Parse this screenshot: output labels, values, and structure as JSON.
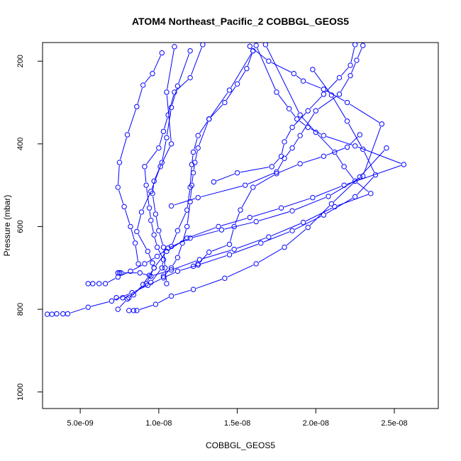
{
  "chart_data": {
    "type": "line",
    "title": "ATOM4 Northeast_Pacific_2 COBBGL_GEOS5",
    "xlabel": "COBBGL_GEOS5",
    "ylabel": "Pressure (mbar)",
    "xlim": [
      2.6e-09,
      2.78e-08
    ],
    "ylim": [
      1040,
      155
    ],
    "y_reversed": true,
    "x_ticks": [
      5e-09,
      1e-08,
      1.5e-08,
      2e-08,
      2.5e-08
    ],
    "x_tick_labels": [
      "5.0e-09",
      "1.0e-08",
      "1.5e-08",
      "2.0e-08",
      "2.5e-08"
    ],
    "y_ticks": [
      200,
      400,
      600,
      800,
      1000
    ],
    "y_tick_labels": [
      "200",
      "400",
      "600",
      "800",
      "1000"
    ],
    "grid": false,
    "color": "#0000ff",
    "marker": "open-circle",
    "series": [
      {
        "x": [
          2.9e-09,
          3.2e-09,
          3.5e-09,
          3.9e-09,
          4.2e-09,
          5.5e-09,
          7e-09,
          8.3e-09,
          9.3e-09,
          1.03e-08,
          1.12e-08,
          1.25e-08,
          1.45e-08,
          1.65e-08,
          1.85e-08,
          2.05e-08,
          2.25e-08,
          2.38e-08,
          2.3e-08,
          2.2e-08,
          2.1e-08,
          1.98e-08
        ],
        "y": [
          812,
          812,
          811,
          811,
          811,
          795,
          780,
          760,
          742,
          724,
          708,
          693,
          668,
          640,
          610,
          572,
          528,
          475,
          413,
          345,
          282,
          220
        ]
      },
      {
        "x": [
          5.5e-09,
          5.8e-09,
          6.2e-09,
          6.6e-09,
          7.4e-09,
          8.2e-09,
          9.1e-09,
          9.9e-09,
          1.06e-08,
          1.2e-08,
          1.4e-08,
          1.62e-08,
          1.85e-08,
          2.08e-08,
          2.3e-08,
          2.42e-08,
          2.2e-08,
          2.05e-08,
          1.92e-08,
          1.86e-08,
          1.7e-08,
          1.58e-08
        ],
        "y": [
          738,
          738,
          738,
          738,
          722,
          708,
          690,
          672,
          652,
          628,
          608,
          588,
          562,
          527,
          478,
          352,
          300,
          268,
          248,
          230,
          200,
          164
        ]
      },
      {
        "x": [
          7.3e-09,
          7.7e-09,
          8.1e-09,
          9.2e-09,
          9.7e-09,
          1.05e-08,
          1.18e-08,
          1.38e-08,
          1.58e-08,
          1.78e-08,
          1.98e-08,
          2.18e-08,
          2.56e-08,
          2.25e-08,
          2.05e-08,
          1.95e-08,
          1.88e-08,
          1.83e-08,
          1.75e-08,
          1.62e-08
        ],
        "y": [
          772,
          772,
          772,
          738,
          700,
          660,
          628,
          600,
          578,
          555,
          530,
          500,
          450,
          405,
          380,
          360,
          340,
          315,
          275,
          162
        ]
      },
      {
        "x": [
          7.4e-09,
          7.5e-09,
          7.6e-09,
          8.8e-09,
          9.5e-09,
          1.08e-08,
          1.26e-08,
          1.48e-08,
          1.7e-08,
          1.92e-08,
          2.12e-08,
          2.35e-08,
          2.25e-08,
          2.18e-08,
          2.12e-08,
          2e-08,
          1.9e-08,
          1.68e-08
        ],
        "y": [
          712,
          712,
          712,
          712,
          720,
          705,
          680,
          655,
          625,
          590,
          552,
          520,
          490,
          455,
          420,
          372,
          330,
          160
        ]
      },
      {
        "x": [
          8.1e-09,
          8.4e-09,
          8.6e-09,
          9.8e-09,
          1.08e-08,
          1.22e-08,
          1.42e-08,
          1.62e-08,
          1.8e-08,
          1.95e-08,
          2.1e-08,
          2.28e-08,
          2.45e-08
        ],
        "y": [
          803,
          803,
          803,
          788,
          768,
          752,
          725,
          690,
          650,
          602,
          545,
          480,
          410
        ]
      },
      {
        "x": [
          7.4e-09,
          8e-09,
          8.4e-09,
          9e-09,
          9.4e-09,
          9.7e-09,
          9.6e-09,
          9.3e-09,
          8.6e-09,
          8.9e-09,
          9.5e-09,
          1.01e-08,
          1.08e-08,
          1.05e-08,
          1.1e-08
        ],
        "y": [
          800,
          775,
          765,
          740,
          718,
          700,
          688,
          660,
          612,
          565,
          515,
          455,
          400,
          275,
          165
        ]
      },
      {
        "x": [
          9.5e-09,
          1.02e-08,
          1.03e-08,
          9.9e-09,
          9.7e-09,
          9.5e-09,
          9.4e-09,
          9.2e-09,
          9.1e-09,
          1e-08,
          1.03e-08,
          1.06e-08,
          1.1e-08,
          1.2e-08,
          1.28e-08
        ],
        "y": [
          735,
          700,
          680,
          650,
          620,
          585,
          555,
          500,
          455,
          410,
          370,
          330,
          275,
          240,
          160
        ]
      },
      {
        "x": [
          1.05e-08,
          1.04e-08,
          1.03e-08,
          1e-08,
          9.8e-09,
          9.6e-09,
          9.7e-09,
          1.02e-08,
          1.05e-08,
          1.08e-08,
          1.12e-08,
          1.2e-08
        ],
        "y": [
          738,
          700,
          650,
          610,
          570,
          520,
          490,
          445,
          385,
          312,
          260,
          175
        ]
      },
      {
        "x": [
          1.03e-08,
          1.08e-08,
          1.12e-08,
          1.15e-08,
          1.18e-08,
          1.2e-08,
          1.21e-08,
          1.22e-08,
          1.23e-08,
          1.25e-08,
          1.32e-08,
          1.45e-08,
          1.6e-08
        ],
        "y": [
          720,
          700,
          675,
          640,
          600,
          540,
          500,
          470,
          445,
          410,
          340,
          270,
          175
        ]
      },
      {
        "x": [
          8.7e-09,
          8.5e-09,
          8.2e-09,
          7.8e-09,
          7.4e-09,
          7.5e-09,
          8e-09,
          8.6e-09,
          9e-09,
          9.6e-09,
          1.02e-08
        ],
        "y": [
          690,
          640,
          600,
          552,
          505,
          445,
          378,
          310,
          258,
          230,
          180
        ]
      },
      {
        "x": [
          1.08e-08,
          1.12e-08,
          1.18e-08,
          1.2e-08,
          1.21e-08,
          1.22e-08,
          1.25e-08,
          1.32e-08,
          1.42e-08,
          1.5e-08,
          1.56e-08,
          1.6e-08
        ],
        "y": [
          648,
          610,
          560,
          505,
          450,
          420,
          380,
          340,
          300,
          255,
          218,
          175
        ]
      },
      {
        "x": [
          1.22e-08,
          1.25e-08,
          1.32e-08,
          1.45e-08,
          1.48e-08,
          1.52e-08,
          1.6e-08,
          1.75e-08,
          1.9e-08,
          2.05e-08,
          2.2e-08,
          2.28e-08
        ],
        "y": [
          696,
          690,
          662,
          643,
          600,
          560,
          505,
          472,
          448,
          430,
          408,
          378
        ]
      },
      {
        "x": [
          1.08e-08,
          1.25e-08,
          1.55e-08,
          1.75e-08,
          1.8e-08,
          1.85e-08,
          1.9e-08,
          2e-08,
          2.15e-08,
          2.22e-08,
          2.26e-08,
          2.3e-08
        ],
        "y": [
          550,
          530,
          500,
          468,
          435,
          410,
          380,
          320,
          280,
          235,
          198,
          162
        ]
      },
      {
        "x": [
          1.35e-08,
          1.5e-08,
          1.72e-08,
          1.78e-08,
          1.8e-08,
          1.85e-08,
          1.95e-08,
          2.05e-08,
          2.15e-08,
          2.22e-08,
          2.25e-08
        ],
        "y": [
          492,
          470,
          455,
          430,
          395,
          360,
          320,
          280,
          240,
          210,
          160
        ]
      }
    ]
  }
}
